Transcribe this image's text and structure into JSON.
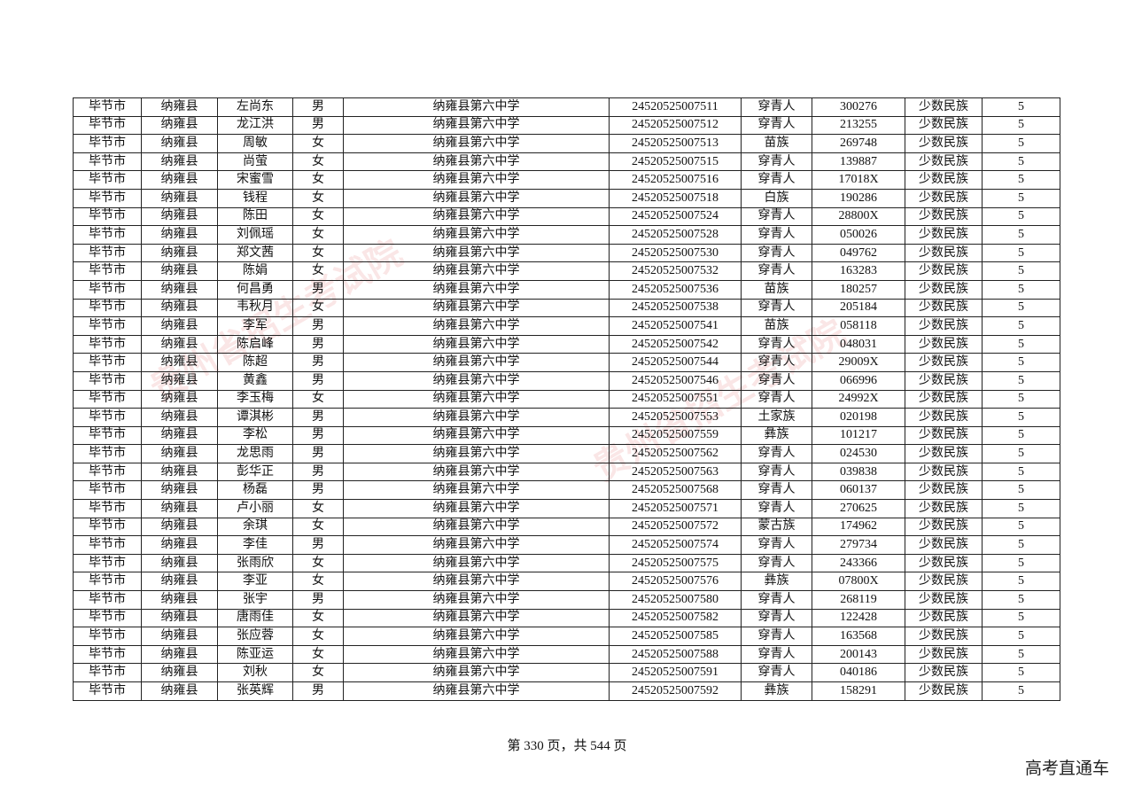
{
  "watermarks": [
    "贵州省招生考试院",
    "贵州省招生考试院"
  ],
  "table": {
    "rows": [
      [
        "毕节市",
        "纳雍县",
        "左尚东",
        "男",
        "纳雍县第六中学",
        "24520525007511",
        "穿青人",
        "300276",
        "少数民族",
        "5"
      ],
      [
        "毕节市",
        "纳雍县",
        "龙江洪",
        "男",
        "纳雍县第六中学",
        "24520525007512",
        "穿青人",
        "213255",
        "少数民族",
        "5"
      ],
      [
        "毕节市",
        "纳雍县",
        "周敏",
        "女",
        "纳雍县第六中学",
        "24520525007513",
        "苗族",
        "269748",
        "少数民族",
        "5"
      ],
      [
        "毕节市",
        "纳雍县",
        "尚萤",
        "女",
        "纳雍县第六中学",
        "24520525007515",
        "穿青人",
        "139887",
        "少数民族",
        "5"
      ],
      [
        "毕节市",
        "纳雍县",
        "宋蜜雪",
        "女",
        "纳雍县第六中学",
        "24520525007516",
        "穿青人",
        "17018X",
        "少数民族",
        "5"
      ],
      [
        "毕节市",
        "纳雍县",
        "钱程",
        "女",
        "纳雍县第六中学",
        "24520525007518",
        "白族",
        "190286",
        "少数民族",
        "5"
      ],
      [
        "毕节市",
        "纳雍县",
        "陈田",
        "女",
        "纳雍县第六中学",
        "24520525007524",
        "穿青人",
        "28800X",
        "少数民族",
        "5"
      ],
      [
        "毕节市",
        "纳雍县",
        "刘佩瑶",
        "女",
        "纳雍县第六中学",
        "24520525007528",
        "穿青人",
        "050026",
        "少数民族",
        "5"
      ],
      [
        "毕节市",
        "纳雍县",
        "郑文茜",
        "女",
        "纳雍县第六中学",
        "24520525007530",
        "穿青人",
        "049762",
        "少数民族",
        "5"
      ],
      [
        "毕节市",
        "纳雍县",
        "陈娟",
        "女",
        "纳雍县第六中学",
        "24520525007532",
        "穿青人",
        "163283",
        "少数民族",
        "5"
      ],
      [
        "毕节市",
        "纳雍县",
        "何昌勇",
        "男",
        "纳雍县第六中学",
        "24520525007536",
        "苗族",
        "180257",
        "少数民族",
        "5"
      ],
      [
        "毕节市",
        "纳雍县",
        "韦秋月",
        "女",
        "纳雍县第六中学",
        "24520525007538",
        "穿青人",
        "205184",
        "少数民族",
        "5"
      ],
      [
        "毕节市",
        "纳雍县",
        "李军",
        "男",
        "纳雍县第六中学",
        "24520525007541",
        "苗族",
        "058118",
        "少数民族",
        "5"
      ],
      [
        "毕节市",
        "纳雍县",
        "陈启峰",
        "男",
        "纳雍县第六中学",
        "24520525007542",
        "穿青人",
        "048031",
        "少数民族",
        "5"
      ],
      [
        "毕节市",
        "纳雍县",
        "陈超",
        "男",
        "纳雍县第六中学",
        "24520525007544",
        "穿青人",
        "29009X",
        "少数民族",
        "5"
      ],
      [
        "毕节市",
        "纳雍县",
        "黄鑫",
        "男",
        "纳雍县第六中学",
        "24520525007546",
        "穿青人",
        "066996",
        "少数民族",
        "5"
      ],
      [
        "毕节市",
        "纳雍县",
        "李玉梅",
        "女",
        "纳雍县第六中学",
        "24520525007551",
        "穿青人",
        "24992X",
        "少数民族",
        "5"
      ],
      [
        "毕节市",
        "纳雍县",
        "谭淇彬",
        "男",
        "纳雍县第六中学",
        "24520525007553",
        "土家族",
        "020198",
        "少数民族",
        "5"
      ],
      [
        "毕节市",
        "纳雍县",
        "李松",
        "男",
        "纳雍县第六中学",
        "24520525007559",
        "彝族",
        "101217",
        "少数民族",
        "5"
      ],
      [
        "毕节市",
        "纳雍县",
        "龙思雨",
        "男",
        "纳雍县第六中学",
        "24520525007562",
        "穿青人",
        "024530",
        "少数民族",
        "5"
      ],
      [
        "毕节市",
        "纳雍县",
        "彭华正",
        "男",
        "纳雍县第六中学",
        "24520525007563",
        "穿青人",
        "039838",
        "少数民族",
        "5"
      ],
      [
        "毕节市",
        "纳雍县",
        "杨磊",
        "男",
        "纳雍县第六中学",
        "24520525007568",
        "穿青人",
        "060137",
        "少数民族",
        "5"
      ],
      [
        "毕节市",
        "纳雍县",
        "卢小丽",
        "女",
        "纳雍县第六中学",
        "24520525007571",
        "穿青人",
        "270625",
        "少数民族",
        "5"
      ],
      [
        "毕节市",
        "纳雍县",
        "余琪",
        "女",
        "纳雍县第六中学",
        "24520525007572",
        "蒙古族",
        "174962",
        "少数民族",
        "5"
      ],
      [
        "毕节市",
        "纳雍县",
        "李佳",
        "男",
        "纳雍县第六中学",
        "24520525007574",
        "穿青人",
        "279734",
        "少数民族",
        "5"
      ],
      [
        "毕节市",
        "纳雍县",
        "张雨欣",
        "女",
        "纳雍县第六中学",
        "24520525007575",
        "穿青人",
        "243366",
        "少数民族",
        "5"
      ],
      [
        "毕节市",
        "纳雍县",
        "李亚",
        "女",
        "纳雍县第六中学",
        "24520525007576",
        "彝族",
        "07800X",
        "少数民族",
        "5"
      ],
      [
        "毕节市",
        "纳雍县",
        "张宇",
        "男",
        "纳雍县第六中学",
        "24520525007580",
        "穿青人",
        "268119",
        "少数民族",
        "5"
      ],
      [
        "毕节市",
        "纳雍县",
        "唐雨佳",
        "女",
        "纳雍县第六中学",
        "24520525007582",
        "穿青人",
        "122428",
        "少数民族",
        "5"
      ],
      [
        "毕节市",
        "纳雍县",
        "张应蓉",
        "女",
        "纳雍县第六中学",
        "24520525007585",
        "穿青人",
        "163568",
        "少数民族",
        "5"
      ],
      [
        "毕节市",
        "纳雍县",
        "陈亚运",
        "女",
        "纳雍县第六中学",
        "24520525007588",
        "穿青人",
        "200143",
        "少数民族",
        "5"
      ],
      [
        "毕节市",
        "纳雍县",
        "刘秋",
        "女",
        "纳雍县第六中学",
        "24520525007591",
        "穿青人",
        "040186",
        "少数民族",
        "5"
      ],
      [
        "毕节市",
        "纳雍县",
        "张英辉",
        "男",
        "纳雍县第六中学",
        "24520525007592",
        "彝族",
        "158291",
        "少数民族",
        "5"
      ]
    ]
  },
  "footer": {
    "page": "第 330 页，共 544 页",
    "brand": "高考直通车"
  }
}
